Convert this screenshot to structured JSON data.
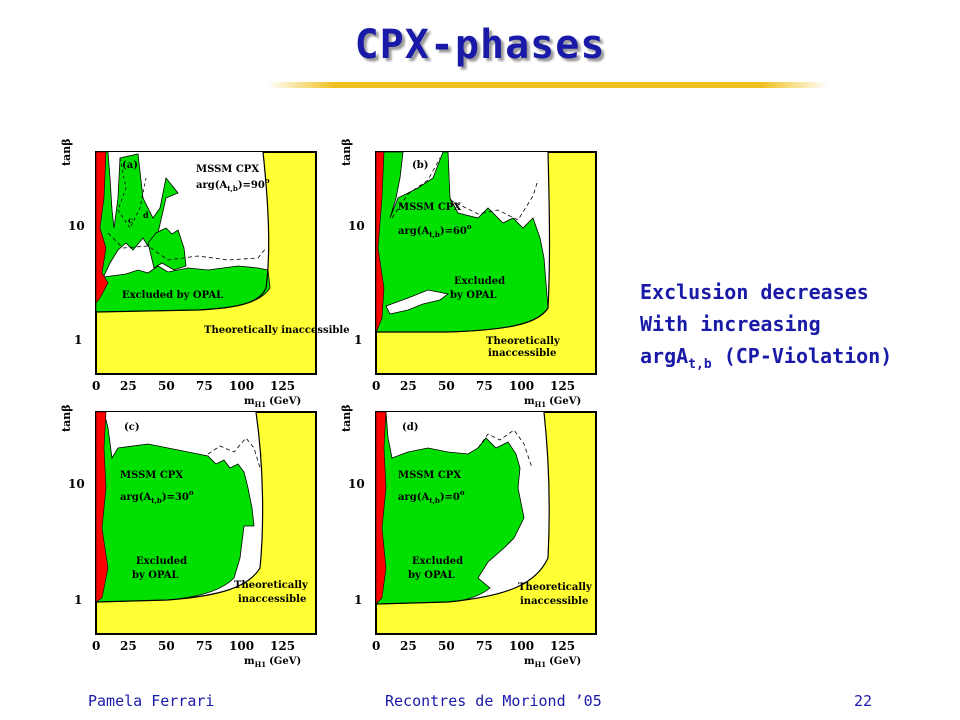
{
  "slide": {
    "title": "CPX-phases",
    "side_text": {
      "line1": "Exclusion decreases",
      "line2": "With increasing",
      "line3_prefix": "argA",
      "line3_sub": "t,b",
      "line3_suffix": " (CP-Violation)"
    },
    "footer": {
      "author": "Pamela Ferrari",
      "conference": "Recontres de Moriond ’05",
      "page": "22"
    }
  },
  "colors": {
    "title_blue": "#1a1aa8",
    "excluded_green": "#00e000",
    "theory_yellow": "#ffff33",
    "red_region": "#ff0000",
    "title_rule_gold": "#f0c020"
  },
  "chart_data": [
    {
      "type": "area",
      "panel": "(a)",
      "model": "MSSM CPX",
      "phase_label": "arg(A",
      "phase_sub": "t,b",
      "phase_value": ")=90",
      "degree": "o",
      "xlabel": "m",
      "xlabel_sub": "H1",
      "xunit": "(GeV)",
      "ylabel": "tanβ",
      "x_ticks": [
        "0",
        "25",
        "50",
        "75",
        "100",
        "125"
      ],
      "y_ticks": [
        "1",
        "10"
      ],
      "xlim": [
        0,
        145
      ],
      "y_scale": "log",
      "regions": [
        "Excluded by OPAL",
        "Theoretically inaccessible"
      ],
      "small_labels": [
        "c",
        "d"
      ]
    },
    {
      "type": "area",
      "panel": "(b)",
      "model": "MSSM CPX",
      "phase_label": "arg(A",
      "phase_sub": "t,b",
      "phase_value": ")=60",
      "degree": "o",
      "xlabel": "m",
      "xlabel_sub": "H1",
      "xunit": "(GeV)",
      "ylabel": "tanβ",
      "x_ticks": [
        "0",
        "25",
        "50",
        "75",
        "100",
        "125"
      ],
      "y_ticks": [
        "1",
        "10"
      ],
      "xlim": [
        0,
        145
      ],
      "y_scale": "log",
      "regions": [
        "Excluded",
        "by OPAL",
        "Theoretically",
        "inaccessible"
      ]
    },
    {
      "type": "area",
      "panel": "(c)",
      "model": "MSSM CPX",
      "phase_label": "arg(A",
      "phase_sub": "t,b",
      "phase_value": ")=30",
      "degree": "o",
      "xlabel": "m",
      "xlabel_sub": "H1",
      "xunit": "(GeV)",
      "ylabel": "tanβ",
      "x_ticks": [
        "0",
        "25",
        "50",
        "75",
        "100",
        "125"
      ],
      "y_ticks": [
        "1",
        "10"
      ],
      "xlim": [
        0,
        145
      ],
      "y_scale": "log",
      "regions": [
        "Excluded",
        "by OPAL",
        "Theoretically",
        "inaccessible"
      ]
    },
    {
      "type": "area",
      "panel": "(d)",
      "model": "MSSM CPX",
      "phase_label": "arg(A",
      "phase_sub": "t,b",
      "phase_value": ")=0",
      "degree": "o",
      "xlabel": "m",
      "xlabel_sub": "H1",
      "xunit": "(GeV)",
      "ylabel": "tanβ",
      "x_ticks": [
        "0",
        "25",
        "50",
        "75",
        "100",
        "125"
      ],
      "y_ticks": [
        "1",
        "10"
      ],
      "xlim": [
        0,
        145
      ],
      "y_scale": "log",
      "regions": [
        "Excluded",
        "by OPAL",
        "Theoretically",
        "inaccessible"
      ]
    }
  ]
}
